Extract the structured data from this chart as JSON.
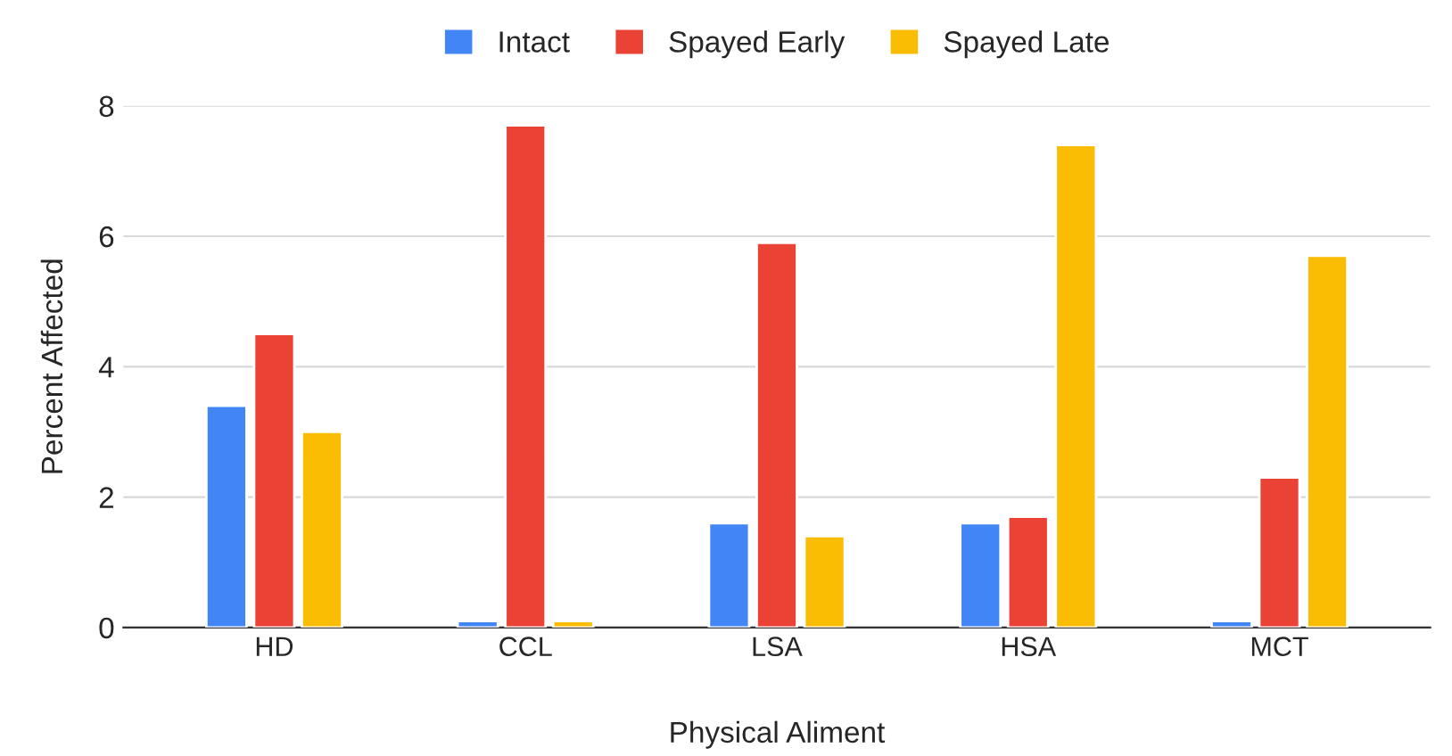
{
  "chart_data": {
    "type": "bar",
    "xlabel": "Physical Aliment",
    "ylabel": "Percent Affected",
    "categories": [
      "HD",
      "CCL",
      "LSA",
      "HSA",
      "MCT"
    ],
    "series": [
      {
        "name": "Intact",
        "color": "#4285f4",
        "values": [
          3.4,
          0.1,
          1.6,
          1.6,
          0.1
        ]
      },
      {
        "name": "Spayed Early",
        "color": "#ea4335",
        "values": [
          4.5,
          7.7,
          5.9,
          1.7,
          2.3
        ]
      },
      {
        "name": "Spayed Late",
        "color": "#fbbc04",
        "values": [
          3.0,
          0.1,
          1.4,
          7.4,
          5.7
        ]
      }
    ],
    "ylim": [
      0,
      8
    ],
    "yticks": [
      0,
      2,
      4,
      6,
      8
    ],
    "grid": "y",
    "legend": "top"
  }
}
